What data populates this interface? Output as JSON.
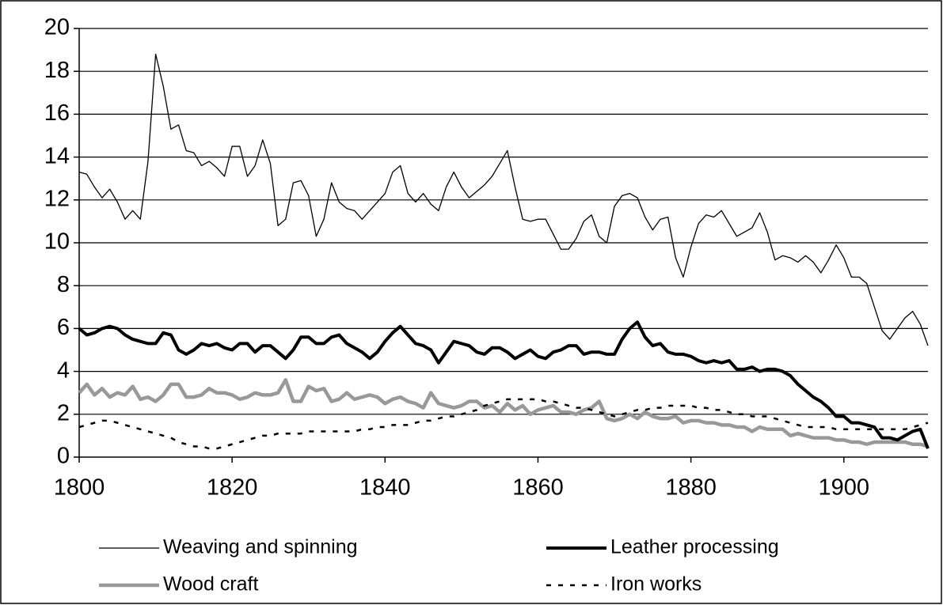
{
  "chart_data": {
    "type": "line",
    "x": [
      1800,
      1801,
      1802,
      1803,
      1804,
      1805,
      1806,
      1807,
      1808,
      1809,
      1810,
      1811,
      1812,
      1813,
      1814,
      1815,
      1816,
      1817,
      1818,
      1819,
      1820,
      1821,
      1822,
      1823,
      1824,
      1825,
      1826,
      1827,
      1828,
      1829,
      1830,
      1831,
      1832,
      1833,
      1834,
      1835,
      1836,
      1837,
      1838,
      1839,
      1840,
      1841,
      1842,
      1843,
      1844,
      1845,
      1846,
      1847,
      1848,
      1849,
      1850,
      1851,
      1852,
      1853,
      1854,
      1855,
      1856,
      1857,
      1858,
      1859,
      1860,
      1861,
      1862,
      1863,
      1864,
      1865,
      1866,
      1867,
      1868,
      1869,
      1870,
      1871,
      1872,
      1873,
      1874,
      1875,
      1876,
      1877,
      1878,
      1879,
      1880,
      1881,
      1882,
      1883,
      1884,
      1885,
      1886,
      1887,
      1888,
      1889,
      1890,
      1891,
      1892,
      1893,
      1894,
      1895,
      1896,
      1897,
      1898,
      1899,
      1900,
      1901,
      1902,
      1903,
      1904,
      1905,
      1906,
      1907,
      1908,
      1909,
      1910,
      1911
    ],
    "series": [
      {
        "name": "Weaving and spinning",
        "color": "#000000",
        "line_width": 1.3,
        "dash": "none",
        "values": [
          13.3,
          13.2,
          12.6,
          12.1,
          12.5,
          11.9,
          11.1,
          11.5,
          11.1,
          13.8,
          18.8,
          17.3,
          15.3,
          15.5,
          14.3,
          14.2,
          13.6,
          13.8,
          13.5,
          13.1,
          14.5,
          14.5,
          13.1,
          13.6,
          14.8,
          13.7,
          10.8,
          11.1,
          12.8,
          12.9,
          12.2,
          10.3,
          11.1,
          12.8,
          11.9,
          11.6,
          11.5,
          11.1,
          11.5,
          11.9,
          12.3,
          13.3,
          13.6,
          12.3,
          11.9,
          12.3,
          11.8,
          11.5,
          12.6,
          13.3,
          12.6,
          12.1,
          12.4,
          12.7,
          13.1,
          13.7,
          14.3,
          12.6,
          11.1,
          11.0,
          11.1,
          11.1,
          10.4,
          9.7,
          9.7,
          10.2,
          11.0,
          11.3,
          10.3,
          10.0,
          11.7,
          12.2,
          12.3,
          12.1,
          11.2,
          10.6,
          11.1,
          11.2,
          9.3,
          8.4,
          9.8,
          10.9,
          11.3,
          11.2,
          11.5,
          10.9,
          10.3,
          10.5,
          10.7,
          11.4,
          10.5,
          9.2,
          9.4,
          9.3,
          9.1,
          9.4,
          9.1,
          8.6,
          9.2,
          9.9,
          9.3,
          8.4,
          8.4,
          8.1,
          7.0,
          5.9,
          5.5,
          6.0,
          6.5,
          6.8,
          6.2,
          5.2
        ]
      },
      {
        "name": "Leather processing",
        "color": "#000000",
        "line_width": 4,
        "dash": "none",
        "values": [
          6.0,
          5.7,
          5.8,
          6.0,
          6.1,
          6.0,
          5.7,
          5.5,
          5.4,
          5.3,
          5.3,
          5.8,
          5.7,
          5.0,
          4.8,
          5.0,
          5.3,
          5.2,
          5.3,
          5.1,
          5.0,
          5.3,
          5.3,
          4.9,
          5.2,
          5.2,
          4.9,
          4.6,
          5.0,
          5.6,
          5.6,
          5.3,
          5.3,
          5.6,
          5.7,
          5.3,
          5.1,
          4.9,
          4.6,
          4.9,
          5.4,
          5.8,
          6.1,
          5.7,
          5.3,
          5.2,
          5.0,
          4.4,
          4.9,
          5.4,
          5.3,
          5.2,
          4.9,
          4.8,
          5.1,
          5.1,
          4.9,
          4.6,
          4.8,
          5.0,
          4.7,
          4.6,
          4.9,
          5.0,
          5.2,
          5.2,
          4.8,
          4.9,
          4.9,
          4.8,
          4.8,
          5.5,
          6.0,
          6.3,
          5.6,
          5.2,
          5.3,
          4.9,
          4.8,
          4.8,
          4.7,
          4.5,
          4.4,
          4.5,
          4.4,
          4.5,
          4.1,
          4.1,
          4.2,
          4.0,
          4.1,
          4.1,
          4.0,
          3.8,
          3.4,
          3.1,
          2.8,
          2.6,
          2.3,
          1.9,
          1.9,
          1.6,
          1.6,
          1.5,
          1.4,
          0.9,
          0.9,
          0.8,
          1.0,
          1.2,
          1.3,
          0.4
        ]
      },
      {
        "name": "Wood craft",
        "color": "#999999",
        "line_width": 4.5,
        "dash": "none",
        "values": [
          3.0,
          3.4,
          2.9,
          3.2,
          2.8,
          3.0,
          2.9,
          3.3,
          2.7,
          2.8,
          2.6,
          2.9,
          3.4,
          3.4,
          2.8,
          2.8,
          2.9,
          3.2,
          3.0,
          3.0,
          2.9,
          2.7,
          2.8,
          3.0,
          2.9,
          2.9,
          3.0,
          3.6,
          2.6,
          2.6,
          3.3,
          3.1,
          3.2,
          2.6,
          2.7,
          3.0,
          2.7,
          2.8,
          2.9,
          2.8,
          2.5,
          2.7,
          2.8,
          2.6,
          2.5,
          2.3,
          3.0,
          2.5,
          2.4,
          2.3,
          2.4,
          2.6,
          2.6,
          2.3,
          2.4,
          2.1,
          2.5,
          2.2,
          2.4,
          2.0,
          2.2,
          2.3,
          2.4,
          2.1,
          2.1,
          2.0,
          2.2,
          2.3,
          2.6,
          1.8,
          1.7,
          1.8,
          2.0,
          1.8,
          2.1,
          1.9,
          1.8,
          1.8,
          1.9,
          1.6,
          1.7,
          1.7,
          1.6,
          1.6,
          1.5,
          1.5,
          1.4,
          1.4,
          1.2,
          1.4,
          1.3,
          1.3,
          1.3,
          1.0,
          1.1,
          1.0,
          0.9,
          0.9,
          0.9,
          0.8,
          0.8,
          0.7,
          0.7,
          0.6,
          0.7,
          0.7,
          0.7,
          0.7,
          0.7,
          0.6,
          0.6,
          0.5
        ]
      },
      {
        "name": "Iron works",
        "color": "#000000",
        "line_width": 2.5,
        "dash": "6 9",
        "values": [
          1.4,
          1.5,
          1.6,
          1.7,
          1.7,
          1.6,
          1.5,
          1.4,
          1.3,
          1.2,
          1.1,
          1.0,
          0.9,
          0.7,
          0.6,
          0.5,
          0.5,
          0.4,
          0.4,
          0.5,
          0.6,
          0.7,
          0.8,
          0.9,
          1.0,
          1.0,
          1.1,
          1.1,
          1.1,
          1.1,
          1.2,
          1.2,
          1.2,
          1.2,
          1.2,
          1.2,
          1.2,
          1.3,
          1.3,
          1.4,
          1.4,
          1.5,
          1.5,
          1.5,
          1.6,
          1.7,
          1.7,
          1.8,
          1.9,
          1.9,
          2.0,
          2.1,
          2.2,
          2.4,
          2.5,
          2.6,
          2.7,
          2.7,
          2.7,
          2.7,
          2.7,
          2.6,
          2.6,
          2.5,
          2.4,
          2.3,
          2.3,
          2.2,
          2.1,
          2.0,
          1.9,
          2.0,
          2.1,
          2.2,
          2.2,
          2.3,
          2.3,
          2.4,
          2.4,
          2.4,
          2.4,
          2.3,
          2.3,
          2.2,
          2.2,
          2.1,
          2.0,
          2.0,
          1.9,
          1.9,
          1.9,
          1.8,
          1.7,
          1.6,
          1.5,
          1.4,
          1.4,
          1.4,
          1.4,
          1.3,
          1.3,
          1.3,
          1.3,
          1.3,
          1.3,
          1.3,
          1.3,
          1.3,
          1.3,
          1.4,
          1.5,
          1.6
        ]
      }
    ],
    "xlim": [
      1800,
      1911
    ],
    "xticks": [
      1800,
      1820,
      1840,
      1860,
      1880,
      1900
    ],
    "ylim": [
      0,
      20
    ],
    "yticks": [
      0,
      2,
      4,
      6,
      8,
      10,
      12,
      14,
      16,
      18,
      20
    ],
    "grid": true,
    "legend": "bottom"
  }
}
